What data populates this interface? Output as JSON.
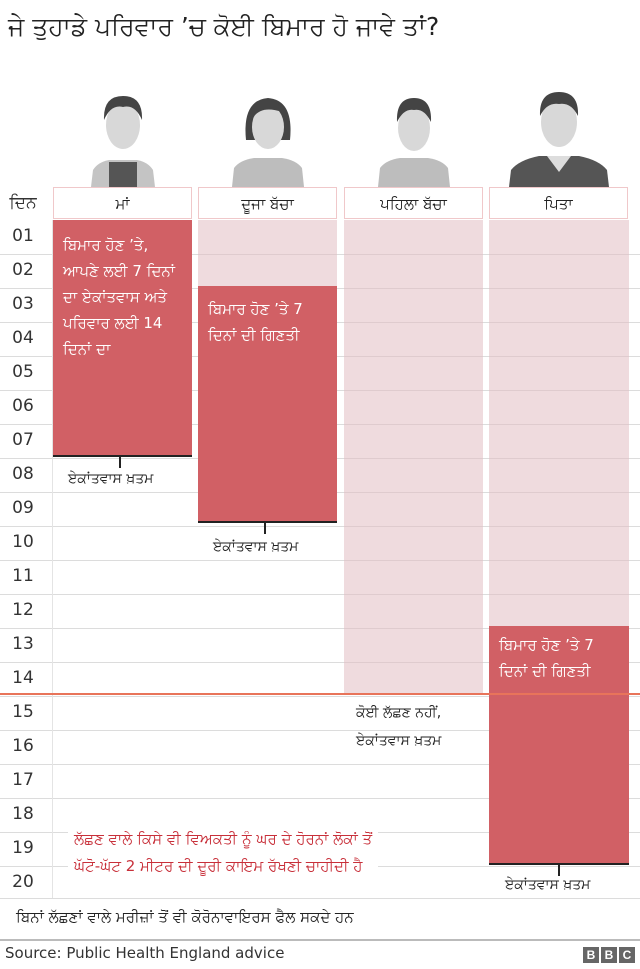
{
  "title": "ਜੇ ਤੁਹਾਡੇ ਪਰਿਵਾਰ ’ਚ ਕੋਈ ਬਿਮਾਰ ਹੋ ਜਾਵੇ ਤਾਂ?",
  "day_header": "ਦਿਨ",
  "days": [
    "01",
    "02",
    "03",
    "04",
    "05",
    "06",
    "07",
    "08",
    "09",
    "10",
    "11",
    "12",
    "13",
    "14",
    "15",
    "16",
    "17",
    "18",
    "19",
    "20"
  ],
  "columns": [
    {
      "label": "ਮਾਂ",
      "isolation_days": [
        1,
        7
      ],
      "bar_text": "ਬਿਮਾਰ ਹੋਣ ’ਤੇ, ਆਪਣੇ ਲਈ 7 ਦਿਨਾਂ ਦਾ ਏਕਾਂਤਵਾਸ ਅਤੇ ਪਰਿਵਾਰ ਲਈ 14 ਦਿਨਾਂ ਦਾ",
      "end_text": "ਏਕਾਂਤਵਾਸ ਖ਼ਤਮ"
    },
    {
      "label": "ਦੂਜਾ ਬੱਚਾ",
      "household_days": [
        1,
        2
      ],
      "isolation_days": [
        3,
        9
      ],
      "bar_text": "ਬਿਮਾਰ ਹੋਣ ’ਤੇ 7 ਦਿਨਾਂ ਦੀ ਗਿਣਤੀ",
      "end_text": "ਏਕਾਂਤਵਾਸ ਖ਼ਤਮ"
    },
    {
      "label": "ਪਹਿਲਾ ਬੱਚਾ",
      "household_days": [
        1,
        14
      ],
      "end_text_1": "ਕੋਈ ਲੱਛਣ ਨਹੀਂ,",
      "end_text_2": "ਏਕਾਂਤਵਾਸ ਖ਼ਤਮ"
    },
    {
      "label": "ਪਿਤਾ",
      "household_days": [
        1,
        12
      ],
      "isolation_days": [
        13,
        19
      ],
      "bar_text": "ਬਿਮਾਰ ਹੋਣ ’ਤੇ 7 ਦਿਨਾਂ ਦੀ ਗਿਣਤੀ",
      "end_text": "ਏਕਾਂਤਵਾਸ ਖ਼ਤਮ"
    }
  ],
  "note_1": "ਲੱਛਣ ਵਾਲੇ ਕਿਸੇ ਵੀ ਵਿਅਕਤੀ ਨੂੰ ਘਰ ਦੇ ਹੋਰਨਾਂ ਲੋਕਾਂ ਤੋਂ",
  "note_2": "ਘੱਟੋ-ਘੱਟ 2 ਮੀਟਰ ਦੀ ਦੂਰੀ ਕਾਇਮ ਰੱਖਣੀ ਚਾਹੀਦੀ ਹੈ",
  "footer_note": "ਬਿਨਾਂ ਲੱਛਣਾਂ ਵਾਲੇ ਮਰੀਜ਼ਾਂ ਤੋਂ ਵੀ ਕੋਰੋਨਾਵਾਇਰਸ ਫੈਲ ਸਕਦੇ ਹਨ",
  "source": "Source: Public Health England advice",
  "logo": [
    "B",
    "B",
    "C"
  ],
  "colors": {
    "isolation": "#d16065",
    "household": "#e2bec2",
    "threshold": "#e8745a",
    "note": "#c8303a"
  }
}
